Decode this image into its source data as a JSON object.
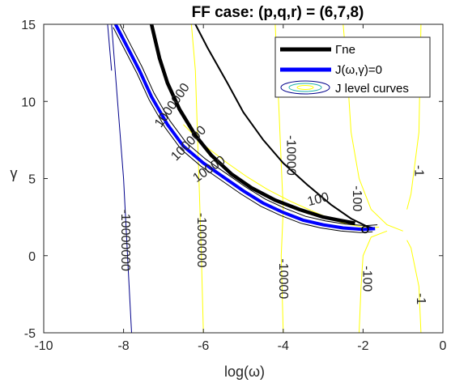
{
  "chart_data": {
    "type": "line",
    "title": "FF case: (p,q,r) = (6,7,8)",
    "xlabel": "log(ω)",
    "ylabel": "γ",
    "xlim": [
      -10,
      0
    ],
    "ylim": [
      -5,
      15
    ],
    "xticks": [
      -10,
      -8,
      -6,
      -4,
      -2,
      0
    ],
    "yticks": [
      -5,
      0,
      5,
      10,
      15
    ],
    "grid": false,
    "legend_position": "top-right",
    "legend": [
      "Γne",
      "J(ω,γ)=0",
      "J level curves"
    ],
    "series": [
      {
        "name": "Γne",
        "color": "#000000",
        "points": [
          [
            -7.3,
            15
          ],
          [
            -7.1,
            12.8
          ],
          [
            -6.9,
            11.2
          ],
          [
            -6.6,
            9.5
          ],
          [
            -6.2,
            7.8
          ],
          [
            -5.8,
            6.5
          ],
          [
            -5.3,
            5.3
          ],
          [
            -4.8,
            4.4
          ],
          [
            -4.2,
            3.6
          ],
          [
            -3.6,
            3.0
          ],
          [
            -3.0,
            2.5
          ],
          [
            -2.6,
            2.3
          ],
          [
            -2.2,
            2.1
          ]
        ]
      },
      {
        "name": "J(ω,γ)=0",
        "color": "#0000ff",
        "points": [
          [
            -8.2,
            15
          ],
          [
            -7.9,
            13.5
          ],
          [
            -7.6,
            12
          ],
          [
            -7.3,
            10.3
          ],
          [
            -6.9,
            8.5
          ],
          [
            -6.5,
            7.1
          ],
          [
            -6.0,
            6.0
          ],
          [
            -5.5,
            5.1
          ],
          [
            -5.0,
            4.2
          ],
          [
            -4.5,
            3.4
          ],
          [
            -4.0,
            2.8
          ],
          [
            -3.5,
            2.3
          ],
          [
            -3.0,
            2.0
          ],
          [
            -2.5,
            1.8
          ],
          [
            -2.0,
            1.7
          ],
          [
            -1.7,
            1.75
          ]
        ]
      }
    ],
    "level_curves": {
      "color": "#ffff00",
      "outer_color": "#00008b",
      "labels": [
        "-10000000",
        "-1000000",
        "-10000",
        "-100",
        "-1",
        "-10000",
        "-100",
        "-1",
        "100",
        "10000",
        "100000",
        "1000000"
      ]
    },
    "secondary_line": {
      "color": "#000000",
      "points": [
        [
          -6.2,
          15
        ],
        [
          -5.9,
          13.5
        ],
        [
          -5.4,
          11.2
        ],
        [
          -5.0,
          9.3
        ],
        [
          -4.5,
          7.5
        ],
        [
          -4.0,
          6.0
        ],
        [
          -3.4,
          4.6
        ],
        [
          -2.8,
          3.3
        ],
        [
          -2.3,
          2.4
        ],
        [
          -1.9,
          1.9
        ],
        [
          -1.75,
          1.8
        ]
      ]
    }
  }
}
